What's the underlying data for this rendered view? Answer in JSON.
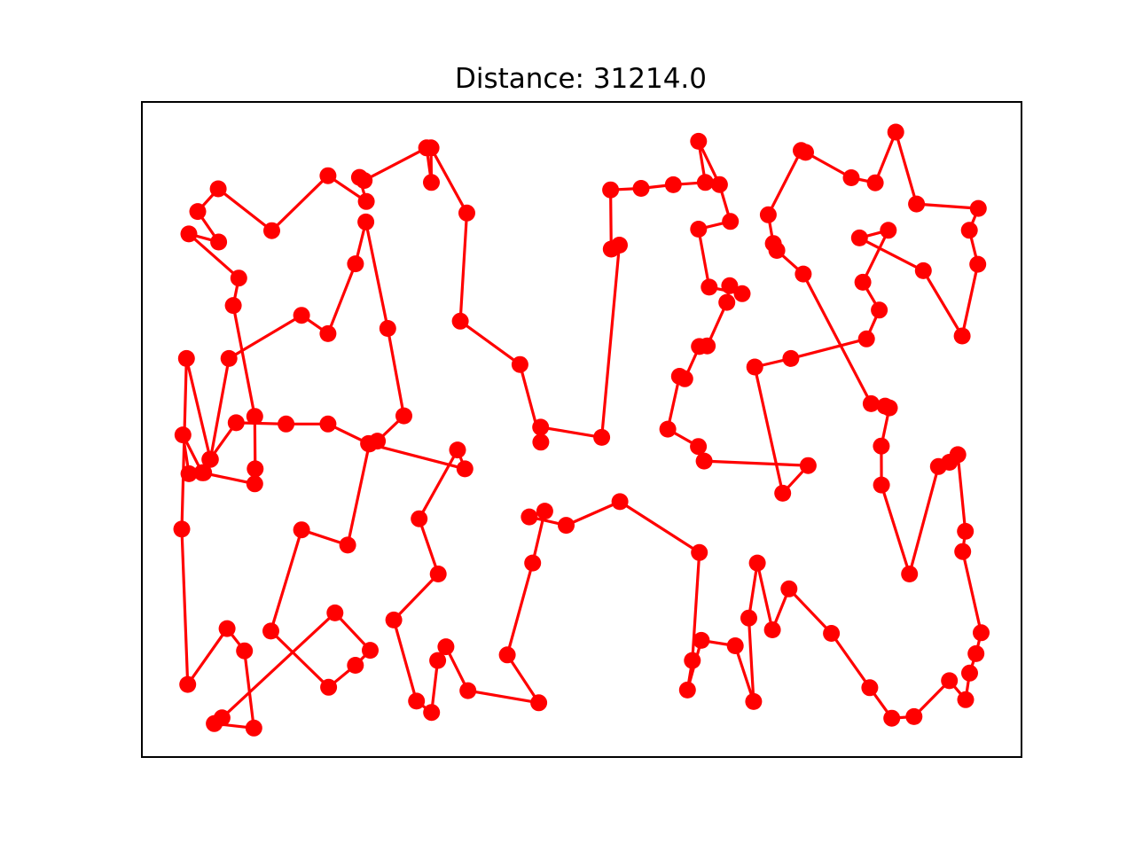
{
  "chart_data": {
    "type": "line",
    "title": "Distance: 31214.0",
    "xlabel": "",
    "ylabel": "",
    "ticks_visible": false,
    "grid": false,
    "legend": "none",
    "markers": "filled circles",
    "series": [
      {
        "color": "#ff0000",
        "points": [
          [
            206.3,
            490.6
          ],
          [
            213.1,
            534.4
          ],
          [
            229.7,
            533.3
          ],
          [
            236.7,
            518.2
          ],
          [
            266.3,
            476.9
          ],
          [
            322.6,
            478.3
          ],
          [
            369.9,
            478.3
          ],
          [
            415.6,
            500.4
          ],
          [
            425.6,
            497.6
          ],
          [
            455.5,
            469.1
          ],
          [
            437.3,
            370.5
          ],
          [
            412.6,
            250.4
          ],
          [
            400.9,
            297.6
          ],
          [
            369.9,
            376.4
          ],
          [
            340.1,
            355.7
          ],
          [
            258.2,
            404.4
          ],
          [
            237.3,
            518.2
          ],
          [
            210.3,
            404.4
          ],
          [
            205.0,
            596.9
          ],
          [
            211.7,
            772.1
          ],
          [
            256.1,
            709.1
          ],
          [
            275.7,
            734.2
          ],
          [
            286.3,
            821.3
          ],
          [
            241.6,
            816.3
          ],
          [
            250.4,
            809.8
          ],
          [
            377.8,
            691.4
          ],
          [
            417.5,
            733.6
          ],
          [
            400.8,
            750.5
          ],
          [
            370.6,
            775.3
          ],
          [
            305.5,
            711.9
          ],
          [
            340.1,
            597.7
          ],
          [
            392.1,
            614.9
          ],
          [
            416.5,
            500.9
          ],
          [
            524.3,
            528.9
          ],
          [
            516.0,
            507.6
          ],
          [
            472.7,
            585.2
          ],
          [
            494.2,
            647.5
          ],
          [
            444.1,
            699.4
          ],
          [
            469.7,
            790.9
          ],
          [
            486.7,
            803.7
          ],
          [
            493.6,
            745.1
          ],
          [
            502.9,
            729.6
          ],
          [
            527.7,
            779.1
          ],
          [
            607.6,
            792.8
          ],
          [
            572.1,
            738.8
          ],
          [
            600.7,
            635.1
          ],
          [
            614.4,
            576.6
          ],
          [
            596.9,
            583.1
          ],
          [
            638.5,
            592.6
          ],
          [
            699.1,
            565.9
          ],
          [
            788.7,
            623.3
          ],
          [
            780.8,
            745.1
          ],
          [
            775.3,
            778.4
          ],
          [
            790.9,
            722.4
          ],
          [
            829.2,
            728.5
          ],
          [
            849.9,
            791.4
          ],
          [
            844.5,
            697.2
          ],
          [
            854.1,
            635.1
          ],
          [
            871.1,
            710.5
          ],
          [
            889.8,
            664.3
          ],
          [
            937.6,
            714.5
          ],
          [
            980.9,
            775.8
          ],
          [
            1005.7,
            810.2
          ],
          [
            1030.8,
            808.4
          ],
          [
            1070.7,
            767.9
          ],
          [
            1089.0,
            789.3
          ],
          [
            1093.5,
            759.3
          ],
          [
            1100.7,
            737.4
          ],
          [
            1106.5,
            713.8
          ],
          [
            1085.7,
            622.2
          ],
          [
            1088.7,
            599.4
          ],
          [
            1080.2,
            512.9
          ],
          [
            1070.7,
            521.5
          ],
          [
            1058.3,
            526.3
          ],
          [
            1025.7,
            647.5
          ],
          [
            994.1,
            547.1
          ],
          [
            993.9,
            503.2
          ],
          [
            1003.0,
            460.1
          ],
          [
            998.2,
            458.1
          ],
          [
            982.4,
            455.4
          ],
          [
            905.9,
            309.1
          ],
          [
            876.1,
            282.5
          ],
          [
            872.1,
            274.7
          ],
          [
            866.4,
            242.3
          ],
          [
            903.5,
            169.8
          ],
          [
            908.5,
            171.9
          ],
          [
            960.0,
            200.5
          ],
          [
            987.1,
            206.2
          ],
          [
            1010.2,
            149.0
          ],
          [
            1033.6,
            230.1
          ],
          [
            1103.3,
            235.1
          ],
          [
            1093.2,
            259.8
          ],
          [
            1102.7,
            298.1
          ],
          [
            1085.1,
            379.0
          ],
          [
            1041.3,
            305.4
          ],
          [
            969.3,
            268.4
          ],
          [
            1001.8,
            259.8
          ],
          [
            973.1,
            318.4
          ],
          [
            991.6,
            349.8
          ],
          [
            977.2,
            382.3
          ],
          [
            891.9,
            404.4
          ],
          [
            851.2,
            414.0
          ],
          [
            882.7,
            556.4
          ],
          [
            911.4,
            525.2
          ],
          [
            794.1,
            520.1
          ],
          [
            787.6,
            503.7
          ],
          [
            753.1,
            484.1
          ],
          [
            766.3,
            424.5
          ],
          [
            772.3,
            427.3
          ],
          [
            788.7,
            390.9
          ],
          [
            797.6,
            390.2
          ],
          [
            819.7,
            341.1
          ],
          [
            822.9,
            322.3
          ],
          [
            837.0,
            331.3
          ],
          [
            799.8,
            323.9
          ],
          [
            787.8,
            258.5
          ],
          [
            823.7,
            249.8
          ],
          [
            811.4,
            208.2
          ],
          [
            787.8,
            159.4
          ],
          [
            795.4,
            205.8
          ],
          [
            759.3,
            208.4
          ],
          [
            723.0,
            212.5
          ],
          [
            688.6,
            214.2
          ],
          [
            689.3,
            281.0
          ],
          [
            698.5,
            276.5
          ],
          [
            678.6,
            493.4
          ],
          [
            609.7,
            481.9
          ],
          [
            609.9,
            498.8
          ],
          [
            586.4,
            411.2
          ],
          [
            519.1,
            362.3
          ],
          [
            526.5,
            240.3
          ],
          [
            486.1,
            166.8
          ],
          [
            486.5,
            205.8
          ],
          [
            481.1,
            166.8
          ],
          [
            410.7,
            203.6
          ],
          [
            405.4,
            200.1
          ],
          [
            413.1,
            227.3
          ],
          [
            369.9,
            198.2
          ],
          [
            306.5,
            260.2
          ],
          [
            246.1,
            213.0
          ],
          [
            223.0,
            238.6
          ],
          [
            246.6,
            273.0
          ],
          [
            213.0,
            263.9
          ],
          [
            269.3,
            313.7
          ],
          [
            263.1,
            344.6
          ],
          [
            287.3,
            469.7
          ],
          [
            287.8,
            528.9
          ],
          [
            287.3,
            545.8
          ],
          [
            228.0,
            533.3
          ],
          [
            206.3,
            490.6
          ]
        ]
      }
    ]
  }
}
